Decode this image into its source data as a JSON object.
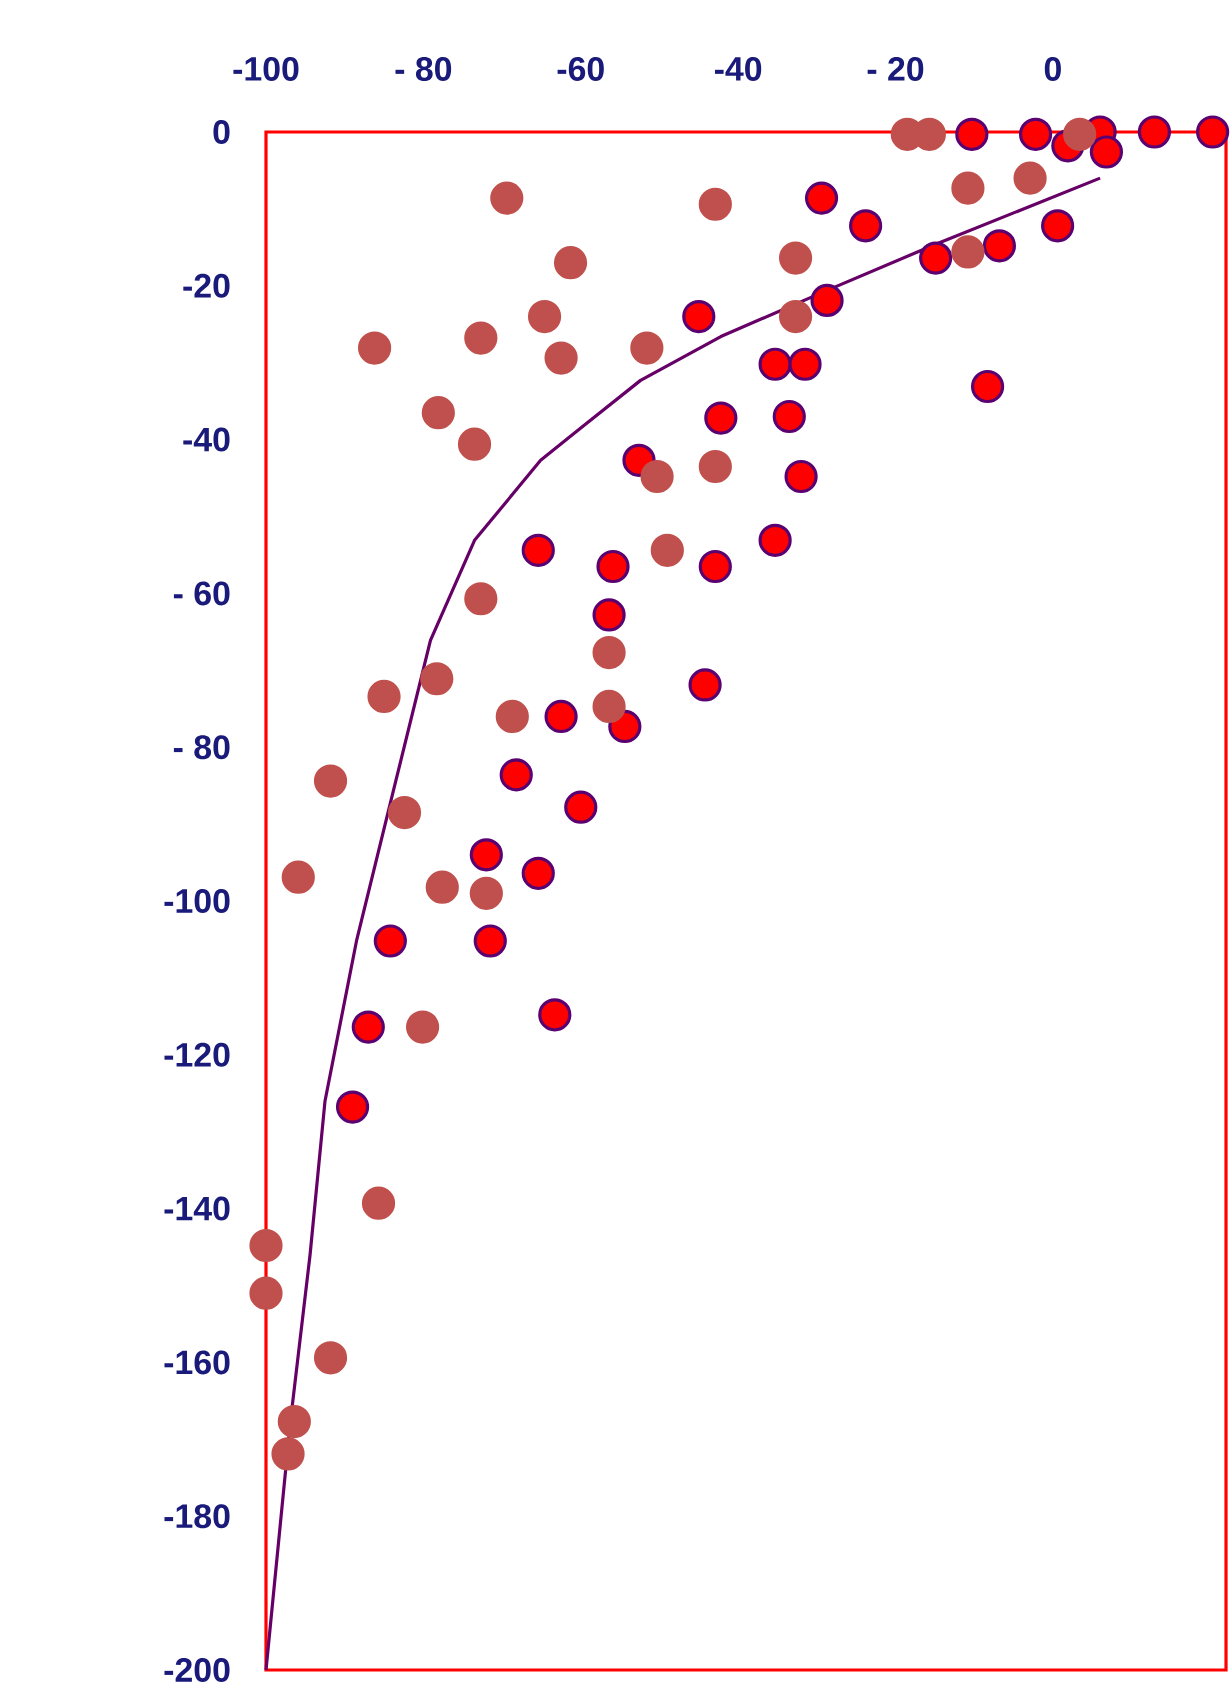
{
  "chart_data": {
    "type": "scatter",
    "xlim": [
      -100,
      22
    ],
    "ylim": [
      -200,
      0
    ],
    "xticks": [
      -100,
      {
        "value": -80,
        "label": "- 80"
      },
      -60,
      -40,
      {
        "value": -20,
        "label": "- 20"
      },
      0
    ],
    "yticks": [
      0,
      -20,
      -40,
      {
        "value": -60,
        "label": "- 60"
      },
      {
        "value": -80,
        "label": "- 80"
      },
      -100,
      -120,
      -140,
      -160,
      -180,
      -200
    ],
    "series": [
      {
        "marker": "circle",
        "color": "#c0504d",
        "x": [
          -69.4,
          -42.9,
          -61.3,
          -64.6,
          -72.7,
          -86.2,
          -62.5,
          -51.6,
          -78.1,
          -73.5,
          -50.3,
          -42.9,
          -49.0,
          -72.7,
          -56.4,
          -56.4,
          -85.0,
          -78.3,
          -68.7,
          -91.8,
          -82.4,
          -95.9,
          -77.6,
          -72.0,
          -80.1,
          -85.7,
          -100,
          -100,
          -91.8,
          -96.4,
          -97.2,
          -32.7,
          -32.7,
          -10.8,
          -2.9,
          -10.8,
          -18.5,
          -15.7,
          3.4
        ],
        "values": [
          -8.6,
          -9.4,
          -17.0,
          -24.0,
          -26.8,
          -28.1,
          -29.4,
          -28.1,
          -36.5,
          -40.6,
          -44.8,
          -43.5,
          -54.4,
          -60.7,
          -67.7,
          -74.7,
          -73.4,
          -71.1,
          -76.0,
          -84.4,
          -88.5,
          -96.9,
          -98.2,
          -99.0,
          -116.4,
          -139.3,
          -144.8,
          -151.0,
          -159.4,
          -167.7,
          -171.9,
          -16.4,
          -24.0,
          -7.3,
          -6.0,
          -15.6,
          -0.3,
          -0.3,
          -0.3
        ]
      },
      {
        "marker": "circle",
        "color": "#ff0000",
        "x": [
          -45.0,
          -42.2,
          -52.6,
          -65.4,
          -55.9,
          -42.9,
          -56.4,
          -29.4,
          -23.8,
          -10.3,
          -2.2,
          1.9,
          6.0,
          6.8,
          12.9,
          20.3,
          0.6,
          -6.8,
          -14.9,
          -28.7,
          -35.3,
          -31.5,
          -33.5,
          -32.0,
          -8.3,
          -35.3,
          -44.2,
          -62.5,
          -54.4,
          -68.2,
          -60.0,
          -72.0,
          -65.4,
          -84.2,
          -71.5,
          -87.0,
          -63.3,
          -89.0
        ],
        "values": [
          -24.0,
          -37.2,
          -42.7,
          -54.4,
          -56.5,
          -56.5,
          -62.8,
          -8.6,
          -12.2,
          -0.3,
          -0.3,
          -1.8,
          0,
          -2.6,
          0,
          0,
          -12.2,
          -14.8,
          -16.4,
          -21.9,
          -30.2,
          -30.2,
          -37.0,
          -44.8,
          -33.1,
          -53.1,
          -71.9,
          -76.0,
          -77.3,
          -83.6,
          -87.8,
          -94.0,
          -96.4,
          -105.2,
          -105.2,
          -116.4,
          -114.8,
          -126.8
        ]
      },
      {
        "type": "line",
        "marker": "none",
        "color": "#660066",
        "x": [
          -100,
          -96.9,
          -94.4,
          -92.5,
          -88.5,
          -83.7,
          -79.1,
          -73.5,
          -65.1,
          -60.0,
          -52.4,
          -42.2,
          -28.7,
          -14.9,
          6.0
        ],
        "values": [
          -200,
          -167.7,
          -146,
          -126,
          -105.2,
          -85.2,
          -66.1,
          -53.1,
          -42.7,
          -38.5,
          -32.3,
          -26.6,
          -20.6,
          -14.6,
          -6.0
        ]
      }
    ]
  }
}
